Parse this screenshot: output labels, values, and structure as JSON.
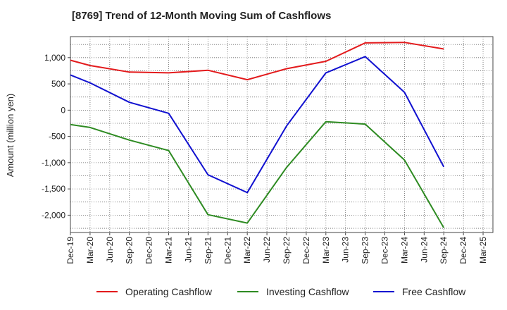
{
  "chart_data": {
    "type": "line",
    "title": "[8769]  Trend of 12-Month Moving Sum of Cashflows",
    "ylabel": "Amount (million yen)",
    "xlabel": "",
    "x": [
      "Dec-19",
      "Mar-20",
      "Jun-20",
      "Sep-20",
      "Dec-20",
      "Mar-21",
      "Jun-21",
      "Sep-21",
      "Dec-21",
      "Mar-22",
      "Jun-22",
      "Sep-22",
      "Dec-22",
      "Mar-23",
      "Jun-23",
      "Sep-23",
      "Dec-23",
      "Mar-24",
      "Jun-24",
      "Sep-24",
      "Dec-24",
      "Mar-25"
    ],
    "ylim": [
      -2330,
      1400
    ],
    "yticks": [
      1000,
      500,
      0,
      -500,
      -1000,
      -1500,
      -2000
    ],
    "ytick_labels": [
      "1,000",
      "500",
      "0",
      "-500",
      "-1,000",
      "-1,500",
      "-2,000"
    ],
    "grid": true,
    "legend_position": "bottom",
    "series": [
      {
        "name": "Operating Cashflow",
        "color": "#e31a1c",
        "values": [
          950,
          850,
          null,
          725,
          null,
          710,
          null,
          760,
          null,
          580,
          null,
          790,
          null,
          930,
          null,
          1280,
          null,
          1290,
          null,
          1165,
          null,
          null
        ]
      },
      {
        "name": "Investing Cashflow",
        "color": "#2e8b22",
        "values": [
          -275,
          -330,
          null,
          -570,
          null,
          -770,
          null,
          -1990,
          null,
          -2150,
          null,
          -1090,
          null,
          -220,
          null,
          -265,
          null,
          -950,
          null,
          -2240,
          null,
          null
        ]
      },
      {
        "name": "Free Cashflow",
        "color": "#1010d0",
        "values": [
          670,
          520,
          null,
          150,
          null,
          -60,
          null,
          -1230,
          null,
          -1570,
          null,
          -300,
          null,
          710,
          null,
          1020,
          null,
          340,
          null,
          -1080,
          null,
          null
        ]
      }
    ]
  }
}
